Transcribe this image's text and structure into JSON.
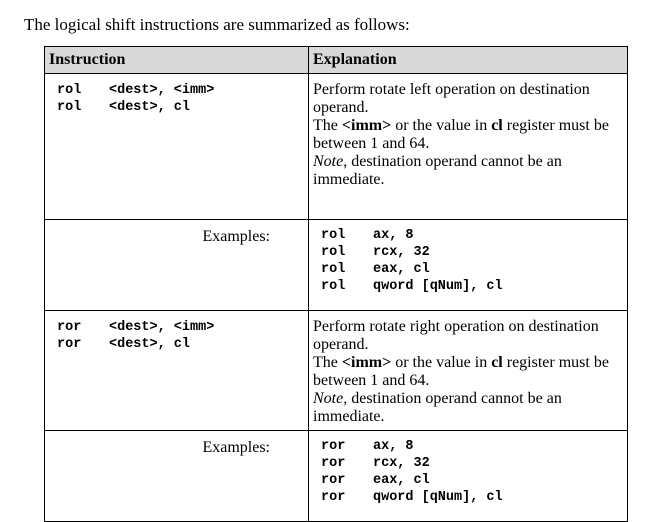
{
  "intro": "The logical shift instructions are summarized as follows:",
  "table": {
    "headers": [
      "Instruction",
      "Explanation"
    ],
    "sections": [
      {
        "syntax": [
          {
            "mnemonic": "rol",
            "operands": "<dest>, <imm>"
          },
          {
            "mnemonic": "rol",
            "operands": "<dest>, cl"
          }
        ],
        "explanation": {
          "line1": "Perform rotate left operation on destination operand.",
          "line2_pre": "The ",
          "line2_b1": "<imm>",
          "line2_mid": " or the value in ",
          "line2_b2": "cl",
          "line2_post": " register must be between 1 and 64.",
          "note_em": "Note",
          "note_rest": ", destination operand cannot be an immediate."
        },
        "examples_label": "Examples:",
        "examples": [
          {
            "mnemonic": "rol",
            "operands": "ax, 8"
          },
          {
            "mnemonic": "rol",
            "operands": "rcx, 32"
          },
          {
            "mnemonic": "rol",
            "operands": "eax, cl"
          },
          {
            "mnemonic": "rol",
            "operands": "qword [qNum], cl"
          }
        ]
      },
      {
        "syntax": [
          {
            "mnemonic": "ror",
            "operands": "<dest>, <imm>"
          },
          {
            "mnemonic": "ror",
            "operands": "<dest>, cl"
          }
        ],
        "explanation": {
          "line1": "Perform rotate right operation on destination operand.",
          "line2_pre": "The ",
          "line2_b1": "<imm>",
          "line2_mid": " or the value in ",
          "line2_b2": "cl",
          "line2_post": " register must be between 1 and 64.",
          "note_em": "Note",
          "note_rest": ", destination operand cannot be an immediate."
        },
        "examples_label": "Examples:",
        "examples": [
          {
            "mnemonic": "ror",
            "operands": "ax, 8"
          },
          {
            "mnemonic": "ror",
            "operands": "rcx, 32"
          },
          {
            "mnemonic": "ror",
            "operands": "eax, cl"
          },
          {
            "mnemonic": "ror",
            "operands": "qword [qNum], cl"
          }
        ]
      }
    ]
  }
}
